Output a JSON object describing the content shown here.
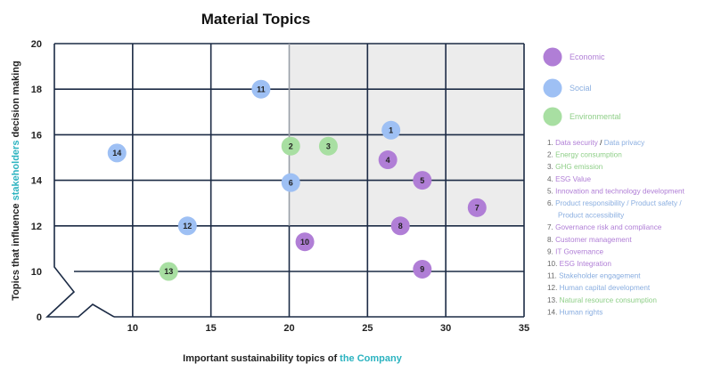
{
  "chart_data": {
    "type": "scatter",
    "title": "Material Topics",
    "xlabel_parts": [
      {
        "text": "Important sustainability topics of ",
        "color": "#222222"
      },
      {
        "text": "the Company",
        "color": "#2bb3c0"
      }
    ],
    "ylabel_parts": [
      {
        "text": "Topics that influence ",
        "color": "#222222"
      },
      {
        "text": "stakeholders",
        "color": "#2bb3c0"
      },
      {
        "text": " decision making",
        "color": "#222222"
      }
    ],
    "xlim": [
      5,
      35
    ],
    "ylim": [
      0,
      20
    ],
    "x_ticks": [
      10,
      15,
      20,
      25,
      30,
      35
    ],
    "y_ticks": [
      0,
      10,
      12,
      14,
      16,
      18,
      20
    ],
    "highlight_region": {
      "x": [
        20,
        35
      ],
      "y": [
        12,
        20
      ],
      "color": "#ececec"
    },
    "categories": [
      {
        "name": "Economic",
        "color": "#b07ed6",
        "text_color": "#b07ed6"
      },
      {
        "name": "Social",
        "color": "#9ec0f4",
        "text_color": "#8aaee0"
      },
      {
        "name": "Environmental",
        "color": "#a8dfa2",
        "text_color": "#8fcf88"
      }
    ],
    "points": [
      {
        "id": "1",
        "x": 26.5,
        "y": 16.2,
        "category": "Social"
      },
      {
        "id": "2",
        "x": 20.1,
        "y": 15.5,
        "category": "Environmental"
      },
      {
        "id": "3",
        "x": 22.5,
        "y": 15.5,
        "category": "Environmental"
      },
      {
        "id": "4",
        "x": 26.3,
        "y": 14.9,
        "category": "Economic"
      },
      {
        "id": "5",
        "x": 28.5,
        "y": 14.0,
        "category": "Economic"
      },
      {
        "id": "6",
        "x": 20.1,
        "y": 13.9,
        "category": "Social"
      },
      {
        "id": "7",
        "x": 32.0,
        "y": 12.8,
        "category": "Economic"
      },
      {
        "id": "8",
        "x": 27.1,
        "y": 12.0,
        "category": "Economic"
      },
      {
        "id": "9",
        "x": 28.5,
        "y": 10.1,
        "category": "Economic"
      },
      {
        "id": "10",
        "x": 21.0,
        "y": 11.3,
        "category": "Economic"
      },
      {
        "id": "11",
        "x": 18.2,
        "y": 18.0,
        "category": "Social"
      },
      {
        "id": "12",
        "x": 13.5,
        "y": 12.0,
        "category": "Social"
      },
      {
        "id": "13",
        "x": 12.3,
        "y": 10.0,
        "category": "Environmental"
      },
      {
        "id": "14",
        "x": 9.0,
        "y": 15.2,
        "category": "Social"
      }
    ],
    "topic_list": [
      [
        {
          "text": "1. ",
          "color": "#666666"
        },
        {
          "text": "Data security",
          "color": "#b07ed6"
        },
        {
          "text": " / ",
          "color": "#222222"
        },
        {
          "text": "Data privacy",
          "color": "#8aaee0"
        }
      ],
      [
        {
          "text": "2. ",
          "color": "#666666"
        },
        {
          "text": "Energy consumption",
          "color": "#8fcf88"
        }
      ],
      [
        {
          "text": "3. ",
          "color": "#666666"
        },
        {
          "text": "GHG emission",
          "color": "#8fcf88"
        }
      ],
      [
        {
          "text": "4. ",
          "color": "#666666"
        },
        {
          "text": "ESG Value",
          "color": "#b07ed6"
        }
      ],
      [
        {
          "text": "5. ",
          "color": "#666666"
        },
        {
          "text": "Innovation and technology development",
          "color": "#b07ed6"
        }
      ],
      [
        {
          "text": "6. ",
          "color": "#666666"
        },
        {
          "text": "Product responsibility / Product safety /",
          "color": "#8aaee0"
        }
      ],
      [
        {
          "text": "Product accessibility",
          "color": "#8aaee0"
        }
      ],
      [
        {
          "text": "7. ",
          "color": "#666666"
        },
        {
          "text": "Governance risk and compliance",
          "color": "#b07ed6"
        }
      ],
      [
        {
          "text": "8. ",
          "color": "#666666"
        },
        {
          "text": "Customer management",
          "color": "#b07ed6"
        }
      ],
      [
        {
          "text": "9. ",
          "color": "#666666"
        },
        {
          "text": "IT Governance",
          "color": "#b07ed6"
        }
      ],
      [
        {
          "text": "10. ",
          "color": "#666666"
        },
        {
          "text": "ESG Integration",
          "color": "#b07ed6"
        }
      ],
      [
        {
          "text": "11. ",
          "color": "#666666"
        },
        {
          "text": "Stakeholder engagement",
          "color": "#8aaee0"
        }
      ],
      [
        {
          "text": "12. ",
          "color": "#666666"
        },
        {
          "text": "Human capital development",
          "color": "#8aaee0"
        }
      ],
      [
        {
          "text": "13. ",
          "color": "#666666"
        },
        {
          "text": "Natural resource consumption",
          "color": "#8fcf88"
        }
      ],
      [
        {
          "text": "14. ",
          "color": "#666666"
        },
        {
          "text": "Human rights",
          "color": "#8aaee0"
        }
      ]
    ],
    "grid": true,
    "legend_position": "right"
  }
}
